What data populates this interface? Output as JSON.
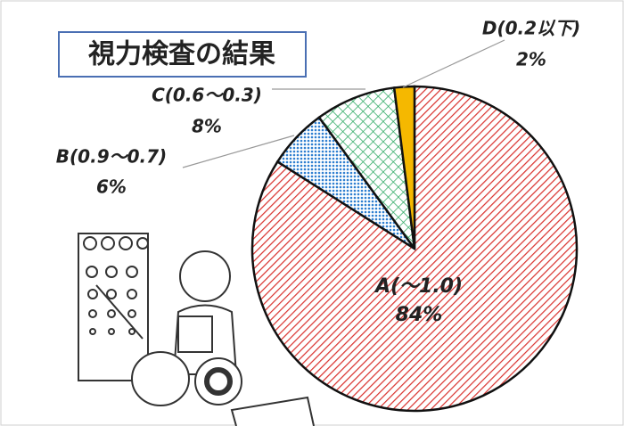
{
  "chart_data": {
    "type": "pie",
    "title": "視力検査の結果",
    "categories": [
      "A(～1.0)",
      "B(0.9～0.7)",
      "C(0.6～0.3)",
      "D(0.2以下)"
    ],
    "values": [
      84,
      6,
      8,
      2
    ],
    "value_labels": [
      "84%",
      "6%",
      "8%",
      "2%"
    ],
    "colors": [
      "#d9302c",
      "#2f7fd0",
      "#2aa860",
      "#f5b800"
    ]
  }
}
